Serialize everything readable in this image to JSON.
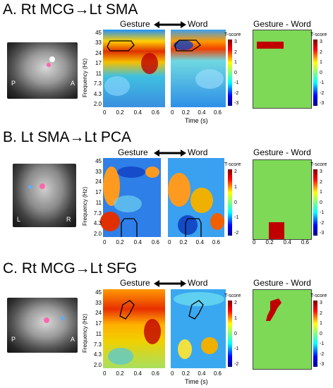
{
  "panels": [
    {
      "title": "A. Rt MCG→Lt SMA",
      "left_header": "Gesture",
      "right_header": "Word",
      "diff_header": "Gesture - Word",
      "brain_labels": [
        "P",
        "A"
      ],
      "cb_ticks": [
        "3",
        "2",
        "1",
        "0",
        "-1",
        "-2",
        "-3"
      ],
      "cb_label": "T-score",
      "xlabel": "Time (s)"
    },
    {
      "title": "B. Lt SMA→Lt PCA",
      "left_header": "Gesture",
      "right_header": "Word",
      "diff_header": "Gesture - Word",
      "brain_labels": [
        "L",
        "R"
      ],
      "cb_ticks": [
        "2",
        "1",
        "0",
        "-1",
        "-2"
      ],
      "diff_cb_ticks": [
        "3",
        "2",
        "1",
        "0",
        "-1",
        "-2",
        "-3"
      ],
      "cb_label": "T-score",
      "xlabel": ""
    },
    {
      "title": "C. Rt MCG→Lt SFG",
      "left_header": "Gesture",
      "right_header": "Word",
      "diff_header": "Gesture - Word",
      "brain_labels": [
        "P",
        "A"
      ],
      "cb_ticks": [
        "2",
        "1",
        "0",
        "-1",
        "-2"
      ],
      "diff_cb_ticks": [
        "3",
        "2",
        "1",
        "0",
        "-1",
        "-2",
        "-3"
      ],
      "cb_label": "T-score",
      "xlabel": "Time (s)"
    }
  ],
  "axes": {
    "ylabel": "Frequency (Hz)",
    "yticks": [
      "45",
      "33",
      "24",
      "17",
      "11",
      "7.3",
      "4.3",
      "2.0"
    ],
    "xticks": [
      "0",
      "0.2",
      "0.4",
      "0.6"
    ]
  },
  "colors": {
    "diff_background": "#7ed957",
    "significant": "#c00000"
  }
}
